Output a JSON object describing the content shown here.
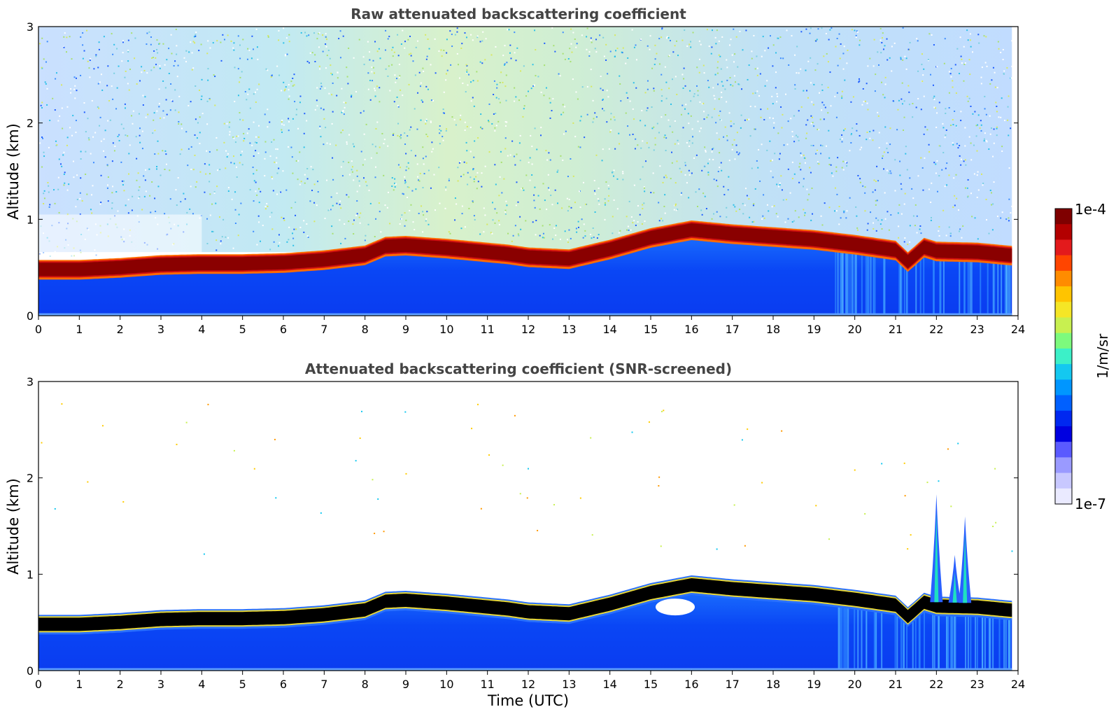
{
  "chart_data": [
    {
      "type": "heatmap",
      "title": "Raw attenuated backscattering coefficient",
      "xlabel": "",
      "ylabel": "Altitude (km)",
      "xlim": [
        0,
        24
      ],
      "ylim": [
        0,
        3
      ],
      "xticks": [
        "0",
        "1",
        "2",
        "3",
        "4",
        "5",
        "6",
        "7",
        "8",
        "9",
        "10",
        "11",
        "12",
        "13",
        "14",
        "15",
        "16",
        "17",
        "18",
        "19",
        "20",
        "21",
        "22",
        "23",
        "24"
      ],
      "yticks": [
        "0",
        "1",
        "2",
        "3"
      ],
      "screened": false,
      "layer_top_km": [
        [
          0,
          0.52
        ],
        [
          1,
          0.52
        ],
        [
          2,
          0.54
        ],
        [
          3,
          0.57
        ],
        [
          4,
          0.58
        ],
        [
          5,
          0.58
        ],
        [
          6,
          0.59
        ],
        [
          7,
          0.62
        ],
        [
          8,
          0.67
        ],
        [
          8.5,
          0.76
        ],
        [
          9,
          0.77
        ],
        [
          10,
          0.74
        ],
        [
          11,
          0.7
        ],
        [
          11.5,
          0.68
        ],
        [
          12,
          0.65
        ],
        [
          13,
          0.63
        ],
        [
          14,
          0.73
        ],
        [
          15,
          0.85
        ],
        [
          16,
          0.93
        ],
        [
          17,
          0.89
        ],
        [
          18,
          0.86
        ],
        [
          19,
          0.83
        ],
        [
          20,
          0.78
        ],
        [
          21,
          0.72
        ],
        [
          21.3,
          0.6
        ],
        [
          21.7,
          0.75
        ],
        [
          22,
          0.71
        ],
        [
          23,
          0.7
        ],
        [
          24,
          0.66
        ]
      ]
    },
    {
      "type": "heatmap",
      "title": "Attenuated backscattering coefficient (SNR-screened)",
      "xlabel": "Time (UTC)",
      "ylabel": "Altitude (km)",
      "xlim": [
        0,
        24
      ],
      "ylim": [
        0,
        3
      ],
      "xticks": [
        "0",
        "1",
        "2",
        "3",
        "4",
        "5",
        "6",
        "7",
        "8",
        "9",
        "10",
        "11",
        "12",
        "13",
        "14",
        "15",
        "16",
        "17",
        "18",
        "19",
        "20",
        "21",
        "22",
        "23",
        "24"
      ],
      "yticks": [
        "0",
        "1",
        "2",
        "3"
      ],
      "screened": true,
      "plumes": [
        {
          "time": 22.0,
          "top_km": 1.83
        },
        {
          "time": 22.7,
          "top_km": 1.6
        },
        {
          "time": 22.45,
          "top_km": 1.2
        }
      ]
    }
  ],
  "colorbar": {
    "label": "1/m/sr",
    "max_label": "1e-4",
    "min_label": "1e-7",
    "colors": [
      "#7f0000",
      "#b30000",
      "#e31a1c",
      "#ff4500",
      "#ff8c00",
      "#ffc400",
      "#f5e626",
      "#c8f050",
      "#7dfa7d",
      "#3cf0c8",
      "#14c8f0",
      "#0096ff",
      "#0060ff",
      "#0028f0",
      "#0000e0",
      "#5a5aff",
      "#9a9aff",
      "#c8c8ff",
      "#eaeaff"
    ]
  }
}
